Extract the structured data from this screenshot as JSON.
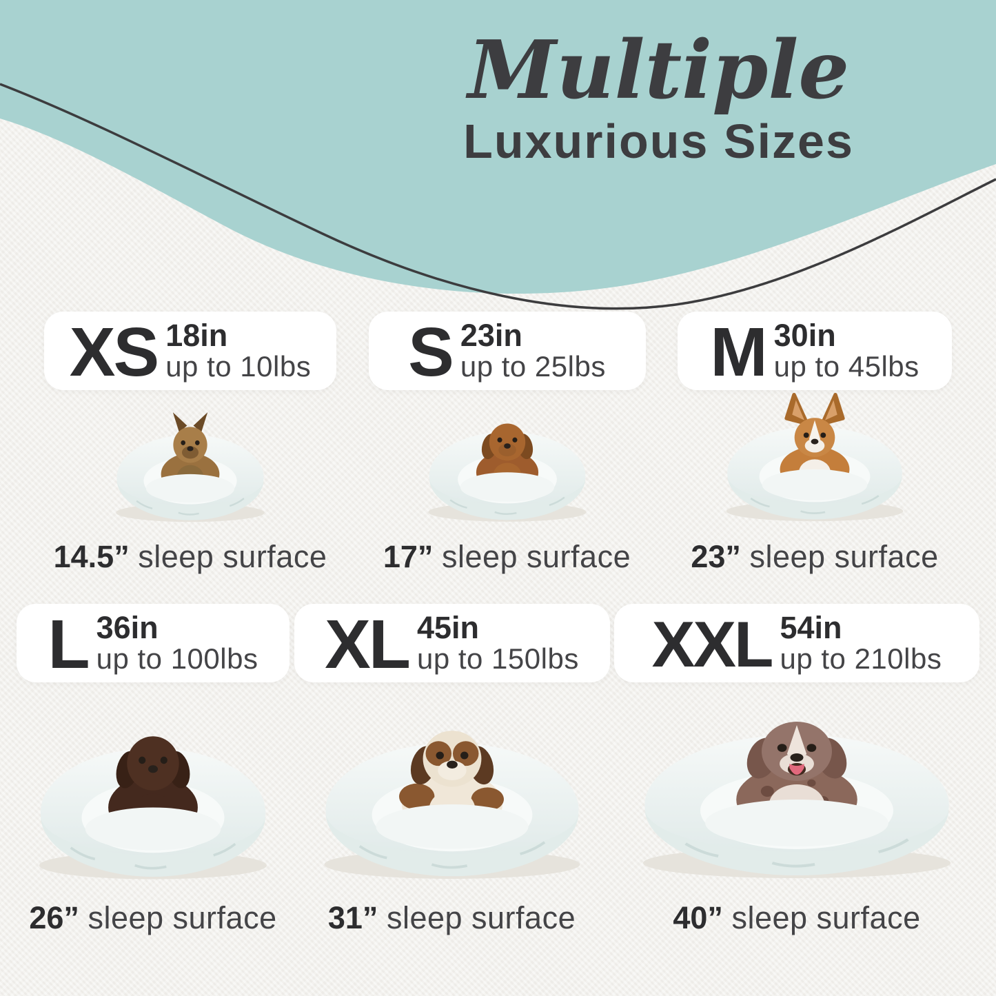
{
  "header": {
    "script_title": "Multiple",
    "main_title": "Luxurious Sizes"
  },
  "sizes": [
    {
      "code": "XS",
      "diameter": "18in",
      "capacity": "up to 10lbs",
      "sleep_surface_value": "14.5”",
      "sleep_surface_label": "sleep surface",
      "illustration": "yorkshire-terrier-in-fluffy-donut-bed"
    },
    {
      "code": "S",
      "diameter": "23in",
      "capacity": "up to 25lbs",
      "sleep_surface_value": "17”",
      "sleep_surface_label": "sleep surface",
      "illustration": "dachshund-in-fluffy-donut-bed"
    },
    {
      "code": "M",
      "diameter": "30in",
      "capacity": "up to 45lbs",
      "sleep_surface_value": "23”",
      "sleep_surface_label": "sleep surface",
      "illustration": "corgi-in-fluffy-donut-bed"
    },
    {
      "code": "L",
      "diameter": "36in",
      "capacity": "up to 100lbs",
      "sleep_surface_value": "26”",
      "sleep_surface_label": "sleep surface",
      "illustration": "chocolate-labrador-in-fluffy-donut-bed"
    },
    {
      "code": "XL",
      "diameter": "45in",
      "capacity": "up to 150lbs",
      "sleep_surface_value": "31”",
      "sleep_surface_label": "sleep surface",
      "illustration": "saint-bernard-in-fluffy-donut-bed"
    },
    {
      "code": "XXL",
      "diameter": "54in",
      "capacity": "up to 210lbs",
      "sleep_surface_value": "40”",
      "sleep_surface_label": "sleep surface",
      "illustration": "great-dane-in-fluffy-donut-bed"
    }
  ],
  "colors": {
    "accent_teal": "#a8d2d0",
    "wave_outline": "#3c3c3e",
    "title_text": "#3d3d40",
    "card_background": "#ffffff",
    "page_background": "#f3f1ed",
    "dark_text": "#2d2d2f",
    "light_text": "#444447"
  }
}
